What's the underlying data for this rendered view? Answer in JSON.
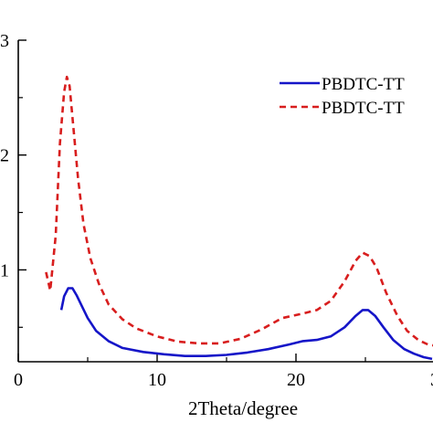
{
  "chart_data": {
    "type": "line",
    "title": "",
    "xlabel": "2Theta/degree",
    "ylabel": "",
    "xlim": [
      0,
      30
    ],
    "ylim": [
      0.2,
      3.0
    ],
    "x_ticks": [
      "0",
      "10",
      "20",
      "3"
    ],
    "y_ticks": [
      "1",
      "2",
      "3"
    ],
    "legend": {
      "placement": "top-right"
    },
    "grid": false,
    "series": [
      {
        "name": "PBDTC-TT",
        "color": "#1515c8",
        "style": "solid",
        "x": [
          3.1,
          3.3,
          3.6,
          3.9,
          4.2,
          4.6,
          5.0,
          5.6,
          6.5,
          7.5,
          9.0,
          10.5,
          12.0,
          13.5,
          15.0,
          16.5,
          18.0,
          19.5,
          20.5,
          21.5,
          22.5,
          23.5,
          24.3,
          24.8,
          25.2,
          25.7,
          26.3,
          27.0,
          27.8,
          28.5,
          29.2,
          29.8
        ],
        "y": [
          0.65,
          0.77,
          0.84,
          0.84,
          0.78,
          0.68,
          0.58,
          0.47,
          0.38,
          0.32,
          0.285,
          0.265,
          0.25,
          0.25,
          0.26,
          0.28,
          0.31,
          0.35,
          0.38,
          0.39,
          0.42,
          0.5,
          0.6,
          0.65,
          0.65,
          0.6,
          0.5,
          0.39,
          0.31,
          0.27,
          0.24,
          0.225
        ]
      },
      {
        "name": "PBDTC-TT",
        "color": "#d81e1e",
        "style": "dashed",
        "x": [
          2.0,
          2.3,
          2.7,
          3.0,
          3.3,
          3.5,
          3.7,
          4.0,
          4.3,
          4.7,
          5.2,
          5.8,
          6.5,
          7.5,
          8.5,
          10.0,
          11.5,
          13.0,
          14.5,
          16.0,
          17.5,
          19.0,
          20.5,
          21.5,
          22.5,
          23.5,
          24.3,
          24.8,
          25.3,
          25.8,
          26.5,
          27.3,
          28.0,
          28.8,
          29.5,
          30.0
        ],
        "y": [
          0.98,
          0.82,
          1.3,
          2.1,
          2.55,
          2.68,
          2.6,
          2.2,
          1.8,
          1.4,
          1.1,
          0.88,
          0.7,
          0.57,
          0.49,
          0.42,
          0.375,
          0.36,
          0.36,
          0.4,
          0.48,
          0.58,
          0.62,
          0.65,
          0.73,
          0.9,
          1.08,
          1.15,
          1.12,
          1.02,
          0.8,
          0.6,
          0.47,
          0.39,
          0.35,
          0.34
        ]
      }
    ]
  }
}
